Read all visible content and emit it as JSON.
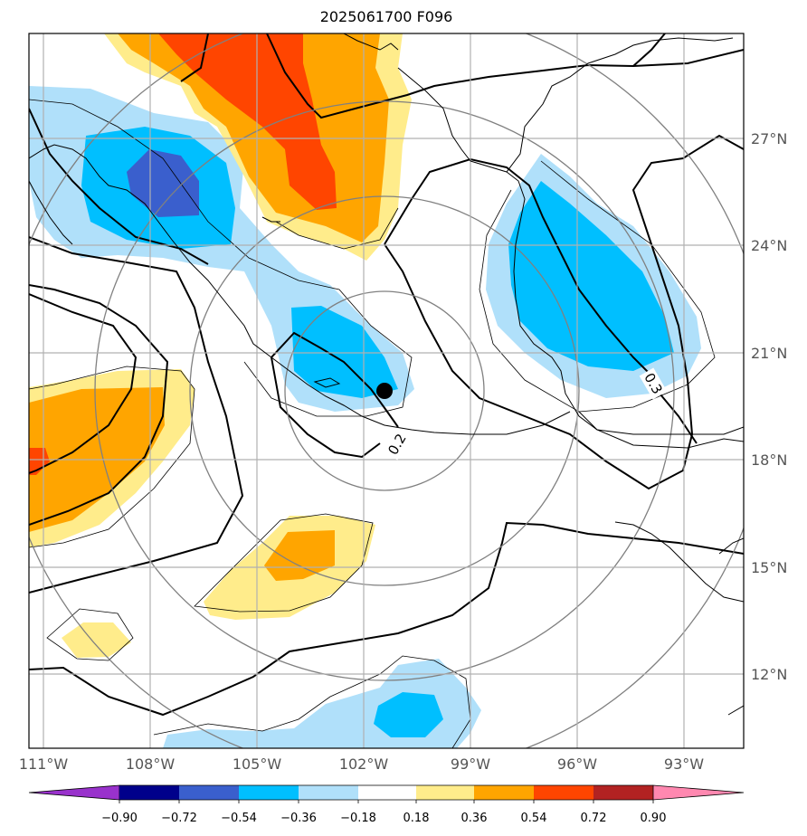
{
  "title": "2025061700 F096",
  "map": {
    "lon_labels": [
      "111°W",
      "108°W",
      "105°W",
      "102°W",
      "99°W",
      "96°W",
      "93°W"
    ],
    "lat_labels": [
      "27°N",
      "24°N",
      "21°N",
      "18°N",
      "15°N",
      "12°N"
    ],
    "contour_labels": [
      "0.2",
      "0.3"
    ],
    "center_marker": {
      "lon": -101.5,
      "lat": 19.9
    }
  },
  "colorbar": {
    "ticks": [
      "−0.90",
      "−0.72",
      "−0.54",
      "−0.36",
      "−0.18",
      "0.18",
      "0.36",
      "0.54",
      "0.72",
      "0.90"
    ],
    "colors": [
      "#9932cc",
      "#00008b",
      "#3a5fcd",
      "#00bfff",
      "#b0e0fa",
      "#ffffff",
      "#ffec8b",
      "#ffa500",
      "#ff4500",
      "#b22222",
      "#ff88b0"
    ]
  },
  "colors": {
    "light_blue": "#b0e0fa",
    "blue": "#00bfff",
    "dark_blue": "#3a5fcd",
    "light_yellow": "#ffec8b",
    "orange": "#ffa500",
    "red_orange": "#ff4500"
  }
}
